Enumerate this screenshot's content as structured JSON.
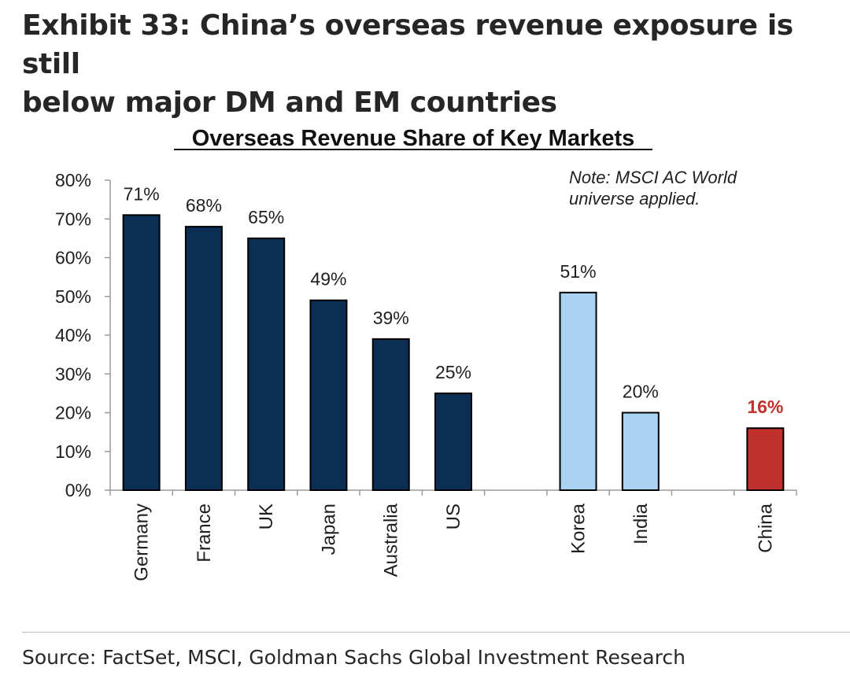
{
  "exhibit": {
    "title_line1": "Exhibit 33: China’s overseas revenue exposure is still",
    "title_line2": "below major DM and EM countries",
    "source": "Source: FactSet, MSCI, Goldman Sachs Global Investment Research"
  },
  "chart_data": {
    "type": "bar",
    "title": "Overseas Revenue Share of Key Markets",
    "note_line1": "Note: MSCI AC World",
    "note_line2": "universe applied.",
    "xlabel": "",
    "ylabel": "",
    "ylim": [
      0,
      80
    ],
    "y_ticks": [
      0,
      10,
      20,
      30,
      40,
      50,
      60,
      70,
      80
    ],
    "y_tick_labels": [
      "0%",
      "10%",
      "20%",
      "30%",
      "40%",
      "50%",
      "60%",
      "70%",
      "80%"
    ],
    "grid": false,
    "categories": [
      "Germany",
      "France",
      "UK",
      "Japan",
      "Australia",
      "US",
      "",
      "Korea",
      "India",
      "",
      "China"
    ],
    "values": [
      71,
      68,
      65,
      49,
      39,
      25,
      null,
      51,
      20,
      null,
      16
    ],
    "value_labels": [
      "71%",
      "68%",
      "65%",
      "49%",
      "39%",
      "25%",
      "",
      "51%",
      "20%",
      "",
      "16%"
    ],
    "groups": [
      "DM",
      "DM",
      "DM",
      "DM",
      "DM",
      "DM",
      "",
      "EM",
      "EM",
      "",
      "China"
    ],
    "colors": {
      "DM": "#0b2e55",
      "EM": "#a9d3f0",
      "China": "#c0312d",
      "highlight_label": "#c0312d",
      "axis": "#9a9a9a",
      "bar_outline": "#000000"
    }
  }
}
